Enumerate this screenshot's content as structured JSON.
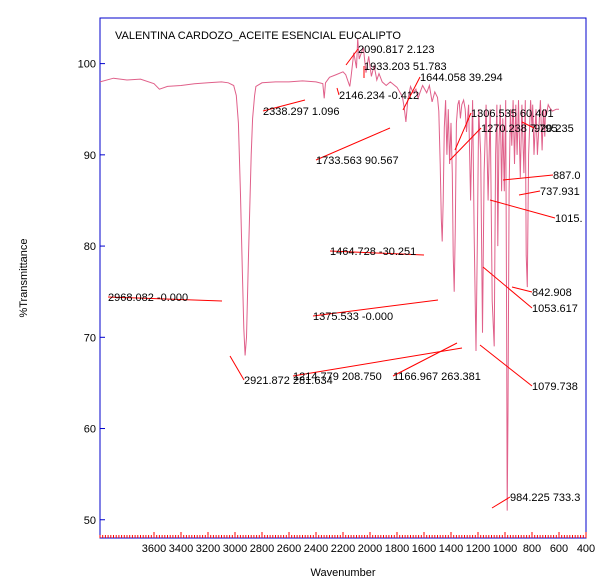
{
  "chart_data": {
    "type": "line",
    "title": "VALENTINA CARDOZO_ACEITE ESENCIAL EUCALIPTO",
    "xlabel": "Wavenumber",
    "ylabel": "%Transmittance",
    "xlim": [
      4000,
      400
    ],
    "ylim": [
      48,
      105
    ],
    "x_reversed": true,
    "x_ticks": [
      3600,
      3400,
      3200,
      3000,
      2800,
      2600,
      2400,
      2200,
      2000,
      1800,
      1600,
      1400,
      1200,
      1000,
      800,
      600,
      400
    ],
    "x_tick_labels": [
      "3600",
      "3400",
      "3200",
      "3000",
      "2800",
      "2600",
      "2400",
      "2200",
      "2000",
      "1800",
      "1600",
      "1400",
      "1200",
      "1000",
      "800",
      "600",
      "400"
    ],
    "y_ticks": [
      50,
      60,
      70,
      80,
      90,
      100
    ],
    "y_tick_labels": [
      "50",
      "60",
      "70",
      "80",
      "90",
      "100"
    ],
    "grid": false,
    "line_color": "#e0608a",
    "annotation_color": "#ff0000",
    "axis_color": "#0000cc",
    "series": [
      {
        "x": [
          4000,
          3900,
          3800,
          3700,
          3600,
          3560,
          3500,
          3400,
          3300,
          3200,
          3100,
          3050,
          3010,
          2990,
          2975,
          2960,
          2945,
          2935,
          2925,
          2915,
          2900,
          2880,
          2870,
          2855,
          2845,
          2800,
          2700,
          2600,
          2500,
          2400,
          2350,
          2339,
          2330,
          2300,
          2250,
          2200,
          2180,
          2150,
          2140,
          2120,
          2100,
          2091,
          2080,
          2050,
          2030,
          2010,
          1990,
          1970,
          1950,
          1933,
          1910,
          1880,
          1850,
          1800,
          1760,
          1745,
          1734,
          1720,
          1700,
          1680,
          1660,
          1644,
          1630,
          1610,
          1580,
          1560,
          1540,
          1520,
          1500,
          1490,
          1480,
          1472,
          1465,
          1458,
          1450,
          1440,
          1430,
          1420,
          1410,
          1400,
          1390,
          1384,
          1376,
          1368,
          1360,
          1350,
          1340,
          1330,
          1320,
          1307,
          1295,
          1285,
          1270,
          1255,
          1240,
          1228,
          1215,
          1205,
          1195,
          1180,
          1167,
          1155,
          1140,
          1125,
          1110,
          1095,
          1080,
          1070,
          1060,
          1053,
          1045,
          1035,
          1025,
          1016,
          1005,
          995,
          988,
          984,
          978,
          970,
          960,
          950,
          940,
          930,
          920,
          910,
          900,
          887,
          875,
          860,
          850,
          843,
          835,
          825,
          810,
          800,
          795,
          785,
          770,
          760,
          738,
          725,
          715,
          705,
          700,
          692,
          680,
          670,
          660,
          650,
          620,
          600
        ],
        "y": [
          98.0,
          98.4,
          98.2,
          98.3,
          97.8,
          97.2,
          97.5,
          97.6,
          97.8,
          97.9,
          98.0,
          97.9,
          97.6,
          96.5,
          93.5,
          86.0,
          77.0,
          71.0,
          68.0,
          70.0,
          79.0,
          90.0,
          94.0,
          96.5,
          97.5,
          97.9,
          98.0,
          98.0,
          98.1,
          98.0,
          97.8,
          96.2,
          97.9,
          98.5,
          98.8,
          99.1,
          98.8,
          97.5,
          98.6,
          101.2,
          99.5,
          102.8,
          100.5,
          101.8,
          99.0,
          100.8,
          98.6,
          99.8,
          98.2,
          98.9,
          98.0,
          97.6,
          98.0,
          97.4,
          96.4,
          95.0,
          93.6,
          96.0,
          97.5,
          96.8,
          97.2,
          96.2,
          96.8,
          97.6,
          96.8,
          97.6,
          95.8,
          96.9,
          96.3,
          94.8,
          89.0,
          83.0,
          80.5,
          85.0,
          93.0,
          96.0,
          90.0,
          95.0,
          89.0,
          93.5,
          88.0,
          79.0,
          75.0,
          82.0,
          93.5,
          95.5,
          96.0,
          94.0,
          95.5,
          96.0,
          95.0,
          92.5,
          95.5,
          85.0,
          96.0,
          81.0,
          68.5,
          80.0,
          95.0,
          90.0,
          70.5,
          88.0,
          95.5,
          85.0,
          95.0,
          74.0,
          69.0,
          90.0,
          95.5,
          80.0,
          91.0,
          95.5,
          86.0,
          94.0,
          86.0,
          96.0,
          72.0,
          51.0,
          62.0,
          86.0,
          95.0,
          91.0,
          96.0,
          89.0,
          95.5,
          90.0,
          96.0,
          87.5,
          95.5,
          88.0,
          96.0,
          79.0,
          75.5,
          90.0,
          96.0,
          93.0,
          95.5,
          90.0,
          95.0,
          90.0,
          96.0,
          90.5,
          95.0,
          92.0,
          95.0,
          94.5,
          95.5,
          95.2,
          95.0,
          94.8,
          95.0,
          95.0
        ]
      }
    ],
    "annotations": [
      {
        "text": "2968.082  -0.000",
        "x": 2968,
        "y": 74.0,
        "lx": 2968,
        "ly": 74.0
      },
      {
        "text": "2921.872  281.634",
        "x": 2921,
        "y": 68.0,
        "lx": 2921,
        "ly": 68.0
      },
      {
        "text": "2338.297  1.096",
        "x": 2338,
        "y": 96.2,
        "lx": 2338,
        "ly": 96.2
      },
      {
        "text": "2146.234  -0.412",
        "x": 2146,
        "y": 97.5,
        "lx": 2146,
        "ly": 97.5
      },
      {
        "text": "2090.817  2.123",
        "x": 2090,
        "y": 102.8,
        "lx": 2090,
        "ly": 102.8
      },
      {
        "text": "1933.203  51.783",
        "x": 1933,
        "y": 98.9,
        "lx": 1933,
        "ly": 98.9
      },
      {
        "text": "1644.058  39.294",
        "x": 1644,
        "y": 96.2,
        "lx": 1644,
        "ly": 96.2
      },
      {
        "text": "1733.563  90.567",
        "x": 1733,
        "y": 93.6,
        "lx": 1733,
        "ly": 93.6
      },
      {
        "text": "1306.535  60.401",
        "x": 1306,
        "y": 96.0,
        "lx": 1306,
        "ly": 96.0
      },
      {
        "text": "1270.238  7.795",
        "x": 1270,
        "y": 95.5,
        "lx": 1270,
        "ly": 95.5
      },
      {
        "text": "920.235",
        "x": 920,
        "y": 95.5,
        "lx": 920,
        "ly": 95.5
      },
      {
        "text": "887.0",
        "x": 887,
        "y": 87.5,
        "lx": 887,
        "ly": 87.5
      },
      {
        "text": "737.931",
        "x": 738,
        "y": 86.0,
        "lx": 738,
        "ly": 86.0
      },
      {
        "text": "1015.",
        "x": 1015,
        "y": 86.0,
        "lx": 1015,
        "ly": 86.0
      },
      {
        "text": "1464.728  -30.251",
        "x": 1464,
        "y": 80.5,
        "lx": 1464,
        "ly": 80.5
      },
      {
        "text": "842.908",
        "x": 843,
        "y": 75.5,
        "lx": 843,
        "ly": 75.5
      },
      {
        "text": "1053.617",
        "x": 1053,
        "y": 80.0,
        "lx": 1053,
        "ly": 80.0
      },
      {
        "text": "1375.533  -0.000",
        "x": 1375,
        "y": 75.0,
        "lx": 1375,
        "ly": 75.0
      },
      {
        "text": "1214.779  208.750",
        "x": 1214,
        "y": 68.5,
        "lx": 1214,
        "ly": 68.5
      },
      {
        "text": "1166.967  263.381",
        "x": 1166,
        "y": 70.5,
        "lx": 1166,
        "ly": 70.5
      },
      {
        "text": "1079.738",
        "x": 1079,
        "y": 69.0,
        "lx": 1079,
        "ly": 69.0
      },
      {
        "text": "984.225  733.3",
        "x": 984,
        "y": 51.0,
        "lx": 984,
        "ly": 51.0
      }
    ]
  }
}
